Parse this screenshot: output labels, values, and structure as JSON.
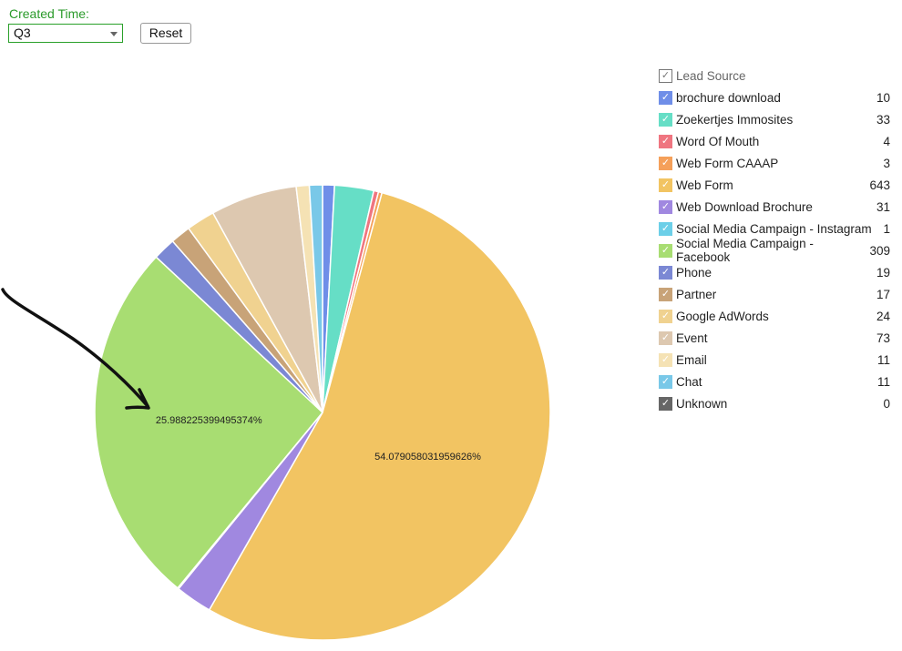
{
  "filter": {
    "label": "Created Time:",
    "value": "Q3",
    "reset_label": "Reset"
  },
  "legend": {
    "title": "Lead Source",
    "check": "✓"
  },
  "chart_data": {
    "type": "pie",
    "categories": [
      "brochure download",
      "Zoekertjes Immosites",
      "Word Of Mouth",
      "Web Form CAAAP",
      "Web Form",
      "Web Download Brochure",
      "Social Media Campaign - Instagram",
      "Social Media Campaign - Facebook",
      "Phone",
      "Partner",
      "Google AdWords",
      "Event",
      "Email",
      "Chat",
      "Unknown"
    ],
    "values": [
      10,
      33,
      4,
      3,
      643,
      31,
      1,
      309,
      19,
      17,
      24,
      73,
      11,
      11,
      0
    ],
    "colors": [
      "#6f8ee8",
      "#66dec6",
      "#ef7580",
      "#f5a05a",
      "#f2c462",
      "#a088e0",
      "#6ccfe8",
      "#a8dd72",
      "#7b88d4",
      "#c8a378",
      "#f0d290",
      "#ddc8b0",
      "#f5e2b4",
      "#79c8e8",
      "#666666"
    ],
    "data_labels": [
      {
        "category": "Social Media Campaign - Facebook",
        "text": "25.988225399495374%"
      },
      {
        "category": "Web Form",
        "text": "54.079058031959626%"
      }
    ],
    "legend_placement": "right"
  }
}
